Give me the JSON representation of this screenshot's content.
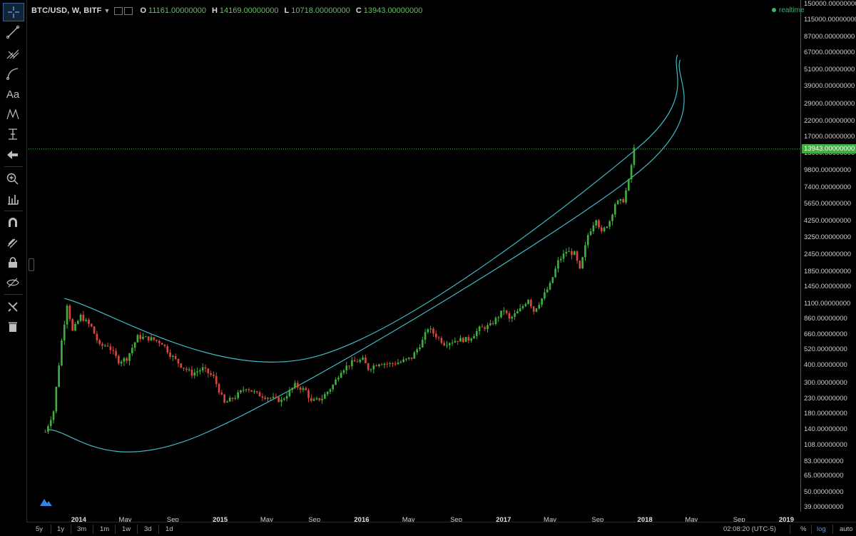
{
  "header": {
    "symbol": "BTC/USD, W, BITF",
    "open_label": "O",
    "open": "11161.00000000",
    "high_label": "H",
    "high": "14169.00000000",
    "low_label": "L",
    "low": "10718.00000000",
    "close_label": "C",
    "close": "13943.00000000",
    "realtime": "realtime"
  },
  "toolbar": {
    "icons": [
      "crosshair-icon",
      "trend-line-icon",
      "pitchfork-icon",
      "curve-brush-icon",
      "text-icon",
      "pattern-icon",
      "measure-icon",
      "arrow-left-icon",
      "zoom-in-icon",
      "tick-ruler-icon",
      "magnet-icon",
      "stay-in-drawing-icon",
      "lock-icon",
      "hide-drawings-icon",
      "tools-icon",
      "trash-icon"
    ],
    "text_label": "Aa"
  },
  "price_badge": "13943.00000000",
  "bottom": {
    "ranges": [
      "5y",
      "1y",
      "3m",
      "1m",
      "1w",
      "3d",
      "1d"
    ],
    "clock": "02:08:20 (UTC-5)",
    "percent": "%",
    "log": "log",
    "auto": "auto"
  },
  "colors": {
    "up": "#3fae3f",
    "down": "#d9453d",
    "channel": "#3fb9c2",
    "price_line": "#3fae3f"
  },
  "chart_data": {
    "type": "candlestick",
    "title": "BTC/USD, W, BITF",
    "scale": "log",
    "ylim": [
      36,
      160000
    ],
    "y_ticks": [
      "150000.00000000",
      "115000.00000000",
      "87000.00000000",
      "67000.00000000",
      "51000.00000000",
      "39000.00000000",
      "29000.00000000",
      "22000.00000000",
      "17000.00000000",
      "13000.00000000",
      "9800.00000000",
      "7400.00000000",
      "5650.00000000",
      "4250.00000000",
      "3250.00000000",
      "2450.00000000",
      "1850.00000000",
      "1450.00000000",
      "1100.00000000",
      "860.00000000",
      "660.00000000",
      "520.00000000",
      "400.00000000",
      "300.00000000",
      "230.00000000",
      "180.00000000",
      "140.00000000",
      "108.00000000",
      "83.00000000",
      "65.00000000",
      "50.00000000",
      "39.00000000"
    ],
    "x_ticks": [
      "2014",
      "May",
      "Sep",
      "2015",
      "May",
      "Sep",
      "2016",
      "May",
      "Sep",
      "2017",
      "May",
      "Sep",
      "2018",
      "May",
      "Sep",
      "2019"
    ],
    "x_year_ticks": [
      "2014",
      "2015",
      "2016",
      "2017",
      "2018",
      "2019"
    ],
    "x_range": [
      "2013-10",
      "2019-01"
    ],
    "last_price": 13943,
    "price_path": [
      [
        "2013-10-07",
        135
      ],
      [
        "2013-10-28",
        190
      ],
      [
        "2013-11-18",
        600
      ],
      [
        "2013-12-02",
        1100
      ],
      [
        "2013-12-16",
        700
      ],
      [
        "2014-01-06",
        900
      ],
      [
        "2014-02-03",
        750
      ],
      [
        "2014-02-24",
        550
      ],
      [
        "2014-03-17",
        560
      ],
      [
        "2014-04-14",
        430
      ],
      [
        "2014-05-05",
        450
      ],
      [
        "2014-06-02",
        640
      ],
      [
        "2014-07-07",
        620
      ],
      [
        "2014-08-04",
        580
      ],
      [
        "2014-08-25",
        480
      ],
      [
        "2014-09-22",
        400
      ],
      [
        "2014-10-20",
        350
      ],
      [
        "2014-11-17",
        380
      ],
      [
        "2014-12-15",
        330
      ],
      [
        "2015-01-12",
        215
      ],
      [
        "2015-02-09",
        240
      ],
      [
        "2015-03-09",
        280
      ],
      [
        "2015-04-06",
        250
      ],
      [
        "2015-05-11",
        235
      ],
      [
        "2015-06-08",
        225
      ],
      [
        "2015-07-13",
        290
      ],
      [
        "2015-08-10",
        265
      ],
      [
        "2015-08-24",
        220
      ],
      [
        "2015-09-21",
        235
      ],
      [
        "2015-10-19",
        290
      ],
      [
        "2015-11-09",
        370
      ],
      [
        "2015-12-07",
        420
      ],
      [
        "2016-01-04",
        440
      ],
      [
        "2016-01-18",
        380
      ],
      [
        "2016-02-15",
        420
      ],
      [
        "2016-03-14",
        410
      ],
      [
        "2016-04-11",
        425
      ],
      [
        "2016-05-09",
        455
      ],
      [
        "2016-06-06",
        600
      ],
      [
        "2016-06-20",
        740
      ],
      [
        "2016-07-04",
        680
      ],
      [
        "2016-08-01",
        575
      ],
      [
        "2016-09-05",
        610
      ],
      [
        "2016-10-03",
        615
      ],
      [
        "2016-10-31",
        730
      ],
      [
        "2016-11-28",
        770
      ],
      [
        "2016-12-19",
        900
      ],
      [
        "2017-01-02",
        1000
      ],
      [
        "2017-01-16",
        850
      ],
      [
        "2017-02-13",
        1000
      ],
      [
        "2017-03-06",
        1200
      ],
      [
        "2017-03-20",
        980
      ],
      [
        "2017-04-10",
        1200
      ],
      [
        "2017-05-01",
        1500
      ],
      [
        "2017-05-22",
        2200
      ],
      [
        "2017-06-12",
        2600
      ],
      [
        "2017-07-03",
        2500
      ],
      [
        "2017-07-17",
        1900
      ],
      [
        "2017-08-07",
        3400
      ],
      [
        "2017-08-28",
        4500
      ],
      [
        "2017-09-11",
        3500
      ],
      [
        "2017-10-02",
        4300
      ],
      [
        "2017-10-16",
        5700
      ],
      [
        "2017-11-06",
        6000
      ],
      [
        "2017-11-20",
        8200
      ],
      [
        "2017-12-04",
        13943
      ]
    ],
    "channel_upper": [
      [
        "2013-11-25",
        1200
      ],
      [
        "2015-08-31",
        460
      ],
      [
        "2017-12-11",
        14000
      ],
      [
        "2018-03-26",
        65000
      ]
    ],
    "channel_lower": [
      [
        "2013-10-14",
        140
      ],
      [
        "2014-11-17",
        130
      ],
      [
        "2017-12-04",
        9000
      ],
      [
        "2018-04-02",
        60000
      ]
    ]
  }
}
